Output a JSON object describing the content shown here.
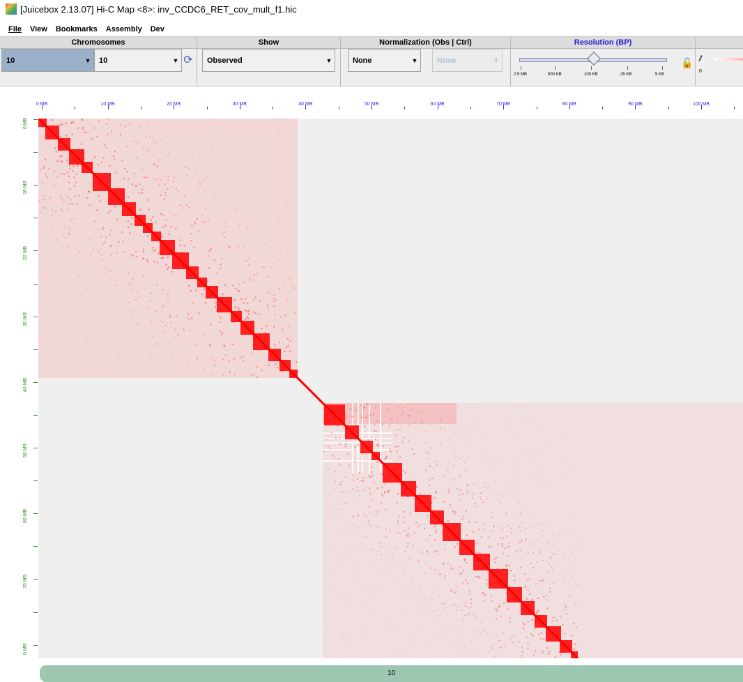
{
  "window": {
    "title": "[Juicebox 2.13.07] Hi-C Map <8>: inv_CCDC6_RET_cov_mult_f1.hic",
    "icon": "juicebox-app-icon"
  },
  "menu": [
    "File",
    "View",
    "Bookmarks",
    "Assembly",
    "Dev"
  ],
  "panels": {
    "chromosomes": {
      "header": "Chromosomes",
      "chrom1": "10",
      "chrom2": "10",
      "refresh_icon": "refresh-icon"
    },
    "show": {
      "header": "Show",
      "value": "Observed"
    },
    "normalization": {
      "header": "Normalization (Obs | Ctrl)",
      "obs": "None",
      "ctrl": "None"
    },
    "resolution": {
      "header": "Resolution (BP)",
      "labels": [
        "2.5 MB",
        "500 KB",
        "100 KB",
        "25 KB",
        "5 KB"
      ],
      "selected": "100 KB",
      "lock_icon": "lock-open-icon"
    },
    "colorscale": {
      "min_label": "0"
    }
  },
  "axis_top": {
    "labels": [
      "0 MB",
      "10 MB",
      "20 MB",
      "30 MB",
      "40 MB",
      "50 MB",
      "60 MB",
      "70 MB",
      "80 MB",
      "90 MB",
      "100 MB"
    ],
    "color": "#2b2be0"
  },
  "axis_left": {
    "labels": [
      "0 MB",
      "10 MB",
      "20 MB",
      "30 MB",
      "40 MB",
      "50 MB",
      "60 MB",
      "70 MB",
      "0 MB"
    ],
    "color": "#2a8a2a"
  },
  "heatmap": {
    "color_high": "#ff0000",
    "color_low": "#efefef",
    "chrom": "10"
  },
  "chrom_track": {
    "label": "10",
    "color": "#9ec7b2"
  }
}
